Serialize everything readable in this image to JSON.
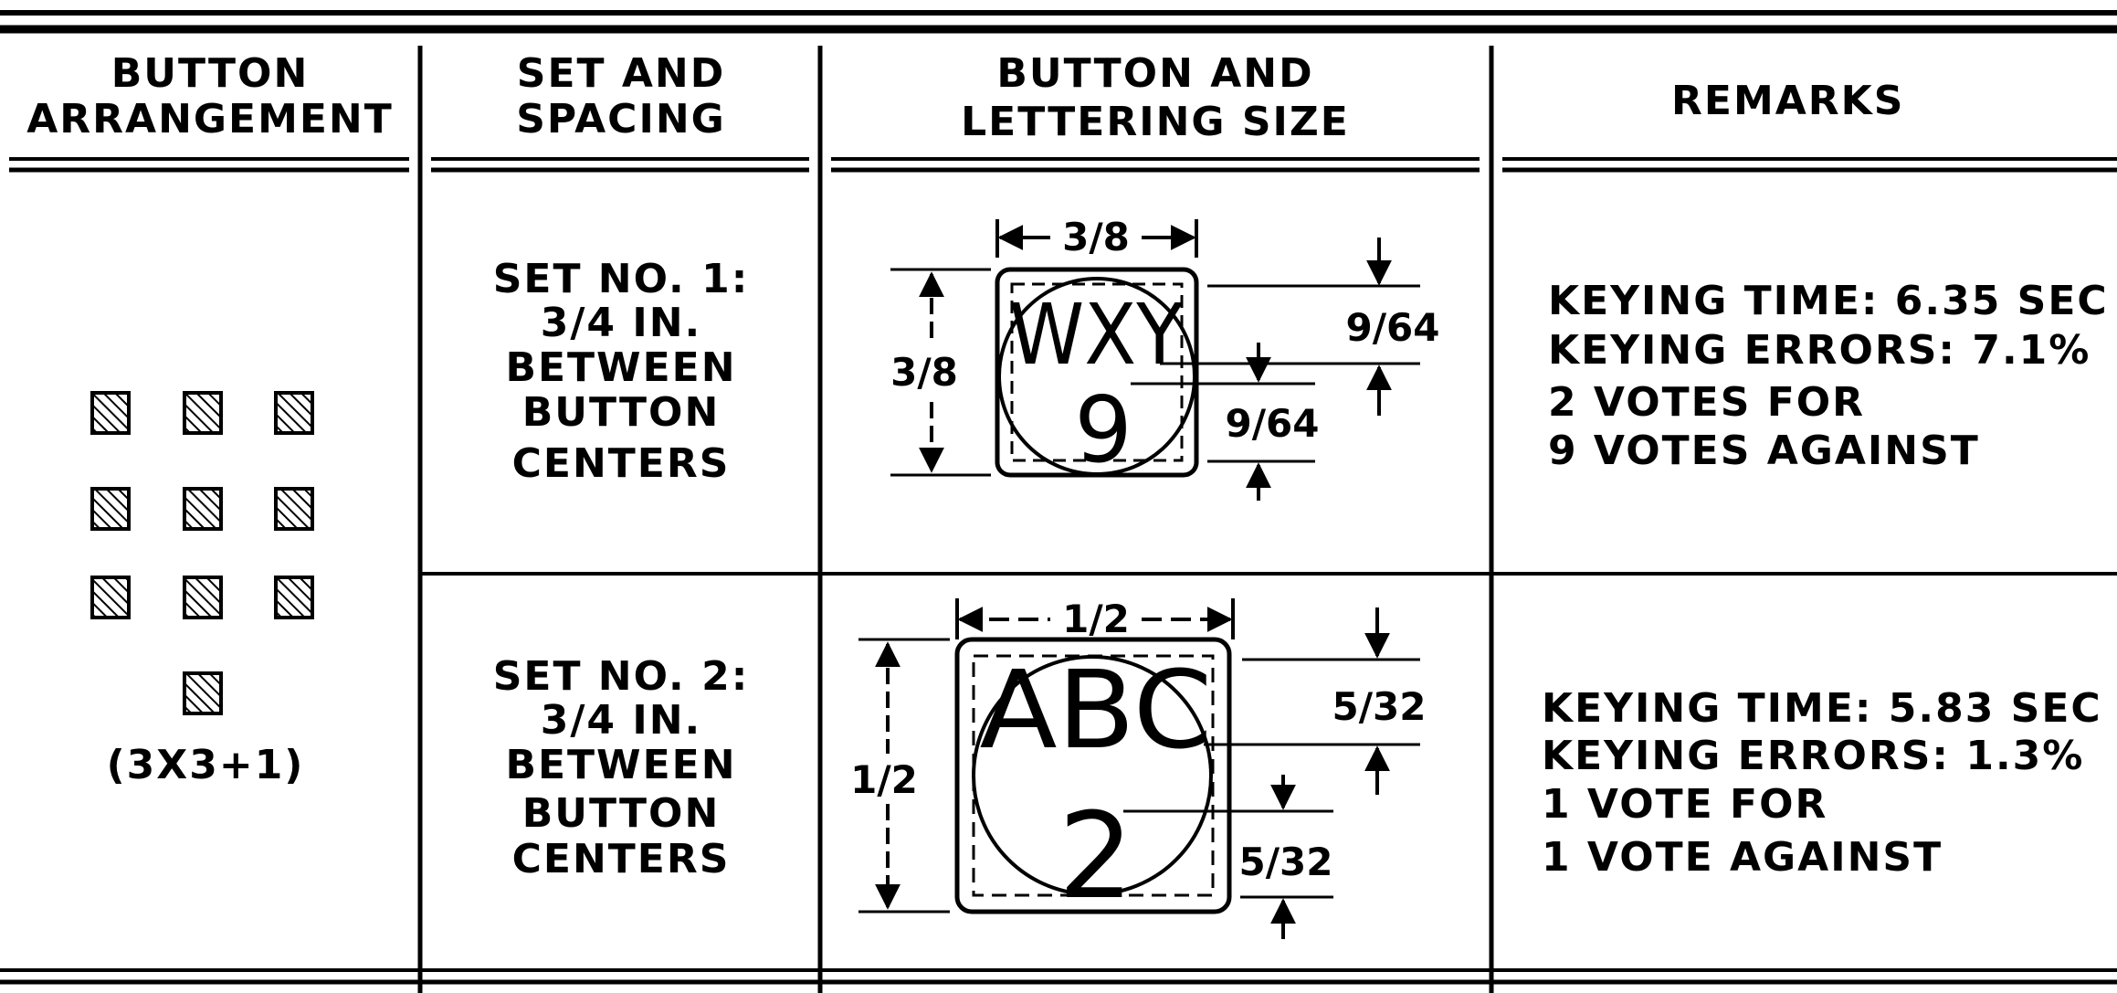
{
  "table": {
    "headers": {
      "arrangement": [
        "BUTTON",
        "ARRANGEMENT"
      ],
      "spacing": [
        "SET AND",
        "SPACING"
      ],
      "size": [
        "BUTTON AND",
        "LETTERING SIZE"
      ],
      "remarks": "REMARKS"
    },
    "arrangement_label": "(3X3+1)",
    "sets": [
      {
        "spacing_lines": [
          "SET  NO. 1:",
          "3/4  IN.",
          "BETWEEN",
          "BUTTON",
          "CENTERS"
        ],
        "button_letters": "WXY",
        "button_digit": "9",
        "button_width": "3/8",
        "button_height": "3/8",
        "letter_height": "9/64",
        "digit_height": "9/64",
        "remarks": [
          "KEYING  TIME: 6.35 SEC",
          "KEYING  ERRORS: 7.1%",
          "2  VOTES  FOR",
          "9  VOTES  AGAINST"
        ]
      },
      {
        "spacing_lines": [
          "SET  NO. 2:",
          "3/4  IN.",
          "BETWEEN",
          "BUTTON",
          "CENTERS"
        ],
        "button_letters": "ABC",
        "button_digit": "2",
        "button_width": "1/2",
        "button_height": "1/2",
        "letter_height": "5/32",
        "digit_height": "5/32",
        "remarks": [
          "KEYING  TIME: 5.83 SEC",
          "KEYING  ERRORS: 1.3%",
          "1  VOTE  FOR",
          "1  VOTE  AGAINST"
        ]
      }
    ]
  }
}
